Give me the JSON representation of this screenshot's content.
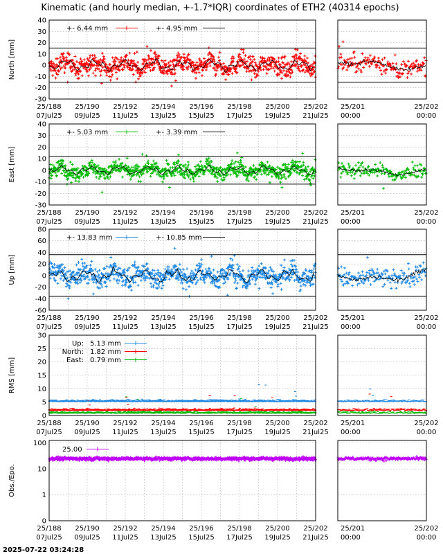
{
  "title": "Kinematic (and hourly median, +-1.7*IQR) coordinates of ETH2 (40314 epochs)",
  "timestamp": "2025-07-22 03:24:28",
  "colors": {
    "north": "#ff0000",
    "east": "#00bb00",
    "up": "#1e88e5",
    "obs": "#c000ff",
    "median": "#000000"
  },
  "x_ticks_main": [
    {
      "top": "25/188",
      "bottom": "07Jul25"
    },
    {
      "top": "25/190",
      "bottom": "09Jul25"
    },
    {
      "top": "25/192",
      "bottom": "11Jul25"
    },
    {
      "top": "25/194",
      "bottom": "13Jul25"
    },
    {
      "top": "25/196",
      "bottom": "15Jul25"
    },
    {
      "top": "25/198",
      "bottom": "17Jul25"
    },
    {
      "top": "25/200",
      "bottom": "19Jul25"
    },
    {
      "top": "25/202",
      "bottom": "21Jul25"
    }
  ],
  "x_ticks_zoom": [
    {
      "top": "25/201",
      "bottom": "00:00"
    },
    {
      "top": "25/202",
      "bottom": "00:00"
    }
  ],
  "chart_data": [
    {
      "type": "scatter",
      "key": "north",
      "ylabel": "North [mm]",
      "ylim": [
        -30,
        40
      ],
      "yticks": [
        -30,
        -20,
        -10,
        0,
        10,
        20,
        30,
        40
      ],
      "x_range_doy": [
        188,
        202
      ],
      "zoom_range_doy": [
        201,
        202
      ],
      "iqr_band": 15.2,
      "series": [
        {
          "label": "+-   6.44 mm",
          "spread": 6.44
        },
        {
          "label": "+-   4.95 mm",
          "spread": 4.95
        }
      ]
    },
    {
      "type": "scatter",
      "key": "east",
      "ylabel": "East [mm]",
      "ylim": [
        -30,
        40
      ],
      "yticks": [
        -30,
        -20,
        -10,
        0,
        10,
        20,
        30,
        40
      ],
      "x_range_doy": [
        188,
        202
      ],
      "zoom_range_doy": [
        201,
        202
      ],
      "iqr_band": 12.0,
      "series": [
        {
          "label": "+-   5.03 mm",
          "spread": 5.03
        },
        {
          "label": "+-   3.39 mm",
          "spread": 3.39
        }
      ]
    },
    {
      "type": "scatter",
      "key": "up",
      "ylabel": "Up [mm]",
      "ylim": [
        -60,
        80
      ],
      "yticks": [
        -60,
        -40,
        -20,
        0,
        20,
        40,
        60,
        80
      ],
      "x_range_doy": [
        188,
        202
      ],
      "zoom_range_doy": [
        201,
        202
      ],
      "iqr_band": 36.0,
      "series": [
        {
          "label": "+-  13.83 mm",
          "spread": 13.83
        },
        {
          "label": "+-  10.85 mm",
          "spread": 10.85
        }
      ]
    },
    {
      "type": "line",
      "key": "rms",
      "ylabel": "RMS [mm]",
      "ylim": [
        0,
        30
      ],
      "yticks": [
        0,
        5,
        10,
        15,
        20,
        25,
        30
      ],
      "x_range_doy": [
        188,
        202
      ],
      "zoom_range_doy": [
        201,
        202
      ],
      "series": [
        {
          "name": "Up:",
          "label": "5.13 mm",
          "value": 5.13,
          "color_key": "up"
        },
        {
          "name": "North:",
          "label": "1.82 mm",
          "value": 1.82,
          "color_key": "north"
        },
        {
          "name": "East:",
          "label": "0.79 mm",
          "value": 0.79,
          "color_key": "east"
        }
      ]
    },
    {
      "type": "scatter",
      "key": "obs",
      "ylabel": "Obs./Epo.",
      "log_scale": true,
      "ylim": [
        0,
        100
      ],
      "yticks": [
        {
          "value": 100,
          "label": "100"
        },
        {
          "value": 10,
          "label": "10"
        },
        {
          "value": 1,
          "label": "1"
        },
        {
          "value": 0,
          "label": "0"
        }
      ],
      "x_range_doy": [
        188,
        202
      ],
      "zoom_range_doy": [
        201,
        202
      ],
      "series": [
        {
          "label": "25.00",
          "value": 25.0
        }
      ]
    }
  ]
}
